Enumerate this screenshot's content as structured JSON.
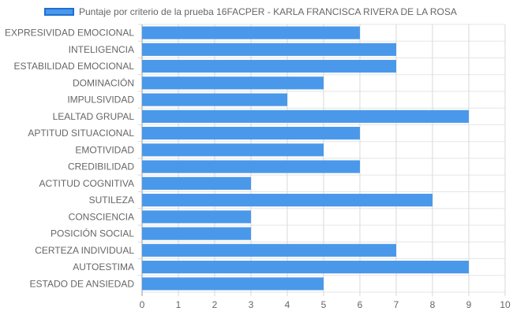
{
  "chart_data": {
    "type": "bar",
    "orientation": "horizontal",
    "categories": [
      "EXPRESIVIDAD EMOCIONAL",
      "INTELIGENCIA",
      "ESTABILIDAD EMOCIONAL",
      "DOMINACIÓN",
      "IMPULSIVIDAD",
      "LEALTAD GRUPAL",
      "APTITUD SITUACIONAL",
      "EMOTIVIDAD",
      "CREDIBILIDAD",
      "ACTITUD COGNITIVA",
      "SUTILEZA",
      "CONSCIENCIA",
      "POSICIÓN SOCIAL",
      "CERTEZA INDIVIDUAL",
      "AUTOESTIMA",
      "ESTADO DE ANSIEDAD"
    ],
    "series": [
      {
        "name": "Puntaje por criterio de la prueba 16FACPER - KARLA FRANCISCA RIVERA DE LA ROSA",
        "values": [
          6,
          7,
          7,
          5,
          4,
          9,
          6,
          5,
          6,
          3,
          8,
          3,
          3,
          7,
          9,
          5
        ],
        "color": "#4a98ea"
      }
    ],
    "xlim": [
      0,
      10
    ],
    "xticks": [
      0,
      1,
      2,
      3,
      4,
      5,
      6,
      7,
      8,
      9,
      10
    ],
    "grid": true,
    "legend_position": "top"
  }
}
